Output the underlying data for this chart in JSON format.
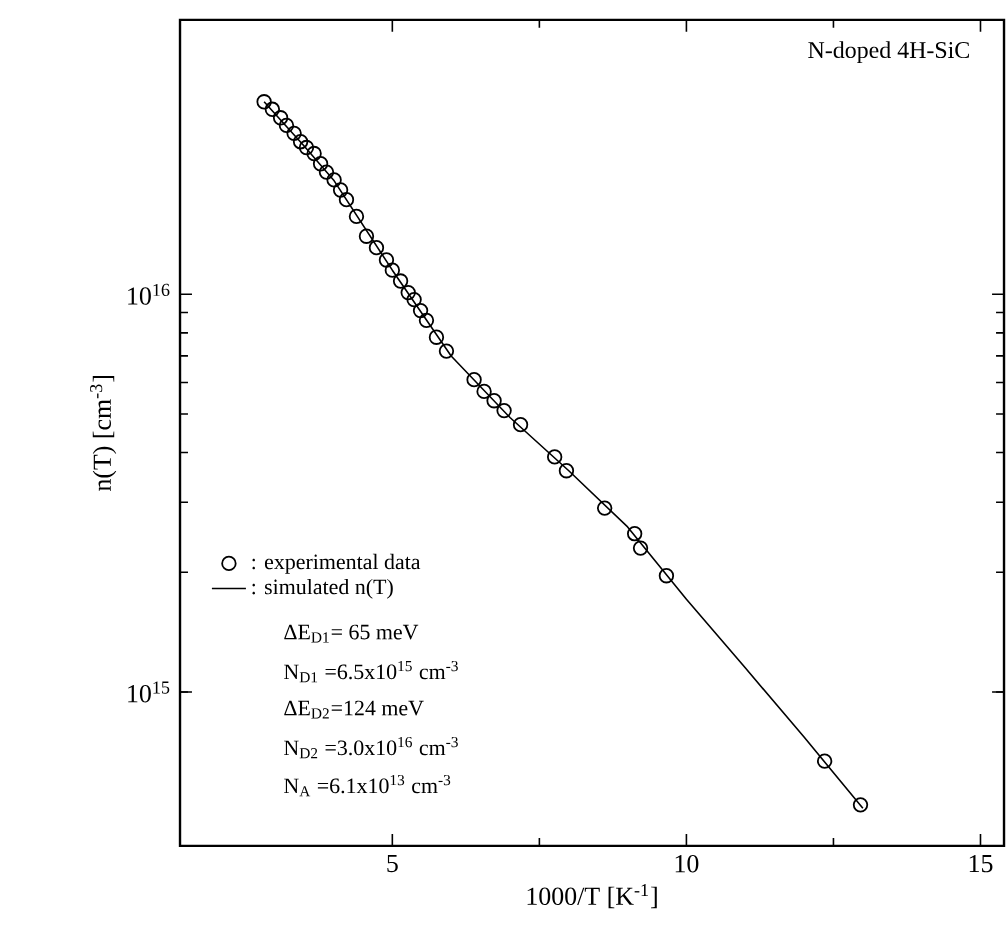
{
  "chart_data": {
    "type": "scatter",
    "xlabel": "1000/T  [K$^{-1}$]",
    "ylabel": "n(T)  [cm$^{-3}$]",
    "log": "y",
    "xlim": [
      1.39,
      15.4
    ],
    "ylim": [
      410000000000000.0,
      4.9e+16
    ],
    "xticks": [
      5,
      10,
      15
    ],
    "yticks": [
      {
        "value": 1000000000000000.0,
        "label": "10$^{15}$"
      },
      {
        "value": 1e+16,
        "label": "10$^{16}$"
      }
    ],
    "legend": "bottom left",
    "grid": false,
    "series": [
      {
        "name": ": experimental data",
        "marker": "circle",
        "color": "#000000",
        "x": [
          2.82,
          2.96,
          3.1,
          3.2,
          3.33,
          3.44,
          3.54,
          3.67,
          3.78,
          3.88,
          4.01,
          4.12,
          4.22,
          4.39,
          4.56,
          4.73,
          4.9,
          5.0,
          5.14,
          5.27,
          5.37,
          5.48,
          5.58,
          5.75,
          5.92,
          6.39,
          6.56,
          6.73,
          6.9,
          7.18,
          7.76,
          7.96,
          8.61,
          9.12,
          9.22,
          9.66,
          12.35,
          12.96
        ],
        "values": [
          3.05e+16,
          2.92e+16,
          2.78e+16,
          2.66e+16,
          2.54e+16,
          2.42e+16,
          2.34e+16,
          2.26e+16,
          2.13e+16,
          2.03e+16,
          1.94e+16,
          1.83e+16,
          1.73e+16,
          1.57e+16,
          1.4e+16,
          1.31e+16,
          1.22e+16,
          1.15e+16,
          1.08e+16,
          1.01e+16,
          9700000000000000.0,
          9100000000000000.0,
          8600000000000000.0,
          7800000000000000.0,
          7200000000000000.0,
          6100000000000000.0,
          5700000000000000.0,
          5400000000000000.0,
          5100000000000000.0,
          4700000000000000.0,
          3900000000000000.0,
          3600000000000000.0,
          2900000000000000.0,
          2500000000000000.0,
          2300000000000000.0,
          1960000000000000.0,
          670000000000000.0,
          520000000000000.0
        ]
      },
      {
        "name": ": simulated n(T)",
        "type": "line",
        "marker": "none",
        "line_style": "solid",
        "color": "#000000",
        "x": [
          2.82,
          3.5,
          4.0,
          5.0,
          6.0,
          7.0,
          8.0,
          9.0,
          10.0,
          11.0,
          12.0,
          13.0
        ],
        "values": [
          3.05e+16,
          2.36e+16,
          1.94e+16,
          1.15e+16,
          7000000000000000.0,
          4900000000000000.0,
          3600000000000000.0,
          2600000000000000.0,
          1710000000000000.0,
          1150000000000000.0,
          770000000000000.0,
          510000000000000.0
        ]
      }
    ],
    "annotations": [
      "N-doped 4H-SiC",
      "ΔE$_{D1}$= 65 meV",
      "N$_{D1}$ =6.5x10$^{15}$ cm$^{-3}$",
      "ΔE$_{D2}$=124 meV",
      "N$_{D2}$ =3.0x10$^{16}$ cm$^{-3}$",
      "N$_{A}$ =6.1x10$^{13}$ cm$^{-3}$"
    ]
  }
}
